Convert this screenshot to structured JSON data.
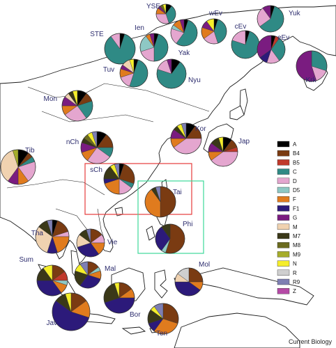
{
  "credit": "Current Biology",
  "legend": [
    {
      "label": "A",
      "color": "#000000"
    },
    {
      "label": "B4",
      "color": "#7a3b12"
    },
    {
      "label": "B5",
      "color": "#c0392b"
    },
    {
      "label": "C",
      "color": "#2f8a85"
    },
    {
      "label": "D",
      "color": "#e4a6cf"
    },
    {
      "label": "D5",
      "color": "#8ec8c4"
    },
    {
      "label": "F",
      "color": "#e07b1e"
    },
    {
      "label": "F1",
      "color": "#2c1a7a"
    },
    {
      "label": "G",
      "color": "#7a1c80"
    },
    {
      "label": "M",
      "color": "#f0d2b0"
    },
    {
      "label": "M7",
      "color": "#3a3818"
    },
    {
      "label": "M8",
      "color": "#6b6b1e"
    },
    {
      "label": "M9",
      "color": "#a6ad2a"
    },
    {
      "label": "N",
      "color": "#f5ee2a"
    },
    {
      "label": "R",
      "color": "#cfcfcf"
    },
    {
      "label": "R9",
      "color": "#7e7fb3"
    },
    {
      "label": "Z",
      "color": "#b54aa6"
    }
  ],
  "populations": [
    {
      "name": "YSE",
      "mix": {
        "A": 10,
        "C": 35,
        "D": 30,
        "F": 10,
        "G": 5,
        "N": 5,
        "M8": 5
      }
    },
    {
      "name": "wEv",
      "mix": {
        "C": 40,
        "D": 20,
        "F": 15,
        "G": 10,
        "A": 5,
        "N": 10
      }
    },
    {
      "name": "Yuk",
      "mix": {
        "C": 60,
        "D": 25,
        "G": 10,
        "A": 5
      }
    },
    {
      "name": "STE",
      "mix": {
        "C": 85,
        "D": 10,
        "A": 5
      }
    },
    {
      "name": "Ien",
      "mix": {
        "C": 45,
        "D5": 20,
        "D": 20,
        "A": 5,
        "G": 5,
        "F": 5
      }
    },
    {
      "name": "cEv",
      "mix": {
        "C": 75,
        "D": 20,
        "A": 5
      }
    },
    {
      "name": "eEv",
      "mix": {
        "C": 30,
        "G": 35,
        "D": 15,
        "F1": 10,
        "B5": 5,
        "A": 5
      }
    },
    {
      "name": "Yak",
      "mix": {
        "C": 55,
        "D": 20,
        "F": 10,
        "A": 5,
        "D5": 5,
        "G": 5
      }
    },
    {
      "name": "Tuv",
      "mix": {
        "C": 50,
        "D": 15,
        "F": 10,
        "A": 5,
        "M": 10,
        "N": 5,
        "G": 5
      }
    },
    {
      "name": "Nyu",
      "mix": {
        "C": 70,
        "D": 15,
        "A": 10,
        "G": 5
      }
    },
    {
      "name": "Krk",
      "mix": {
        "C": 30,
        "G": 55,
        "D": 15
      }
    },
    {
      "name": "Mon",
      "mix": {
        "D": 25,
        "C": 20,
        "A": 10,
        "G": 10,
        "B4": 10,
        "F": 10,
        "M": 5,
        "M7": 5,
        "N": 5
      }
    },
    {
      "name": "Kor",
      "mix": {
        "D": 40,
        "B4": 15,
        "A": 10,
        "G": 10,
        "F": 10,
        "M7": 5,
        "N": 5,
        "R9": 5
      }
    },
    {
      "name": "Jap",
      "mix": {
        "D": 40,
        "B4": 10,
        "A": 10,
        "G": 10,
        "M7": 10,
        "F": 10,
        "N": 5,
        "B5": 5
      }
    },
    {
      "name": "nCh",
      "mix": {
        "D": 25,
        "B4": 15,
        "C": 10,
        "A": 10,
        "G": 10,
        "F": 10,
        "M8": 5,
        "N": 5,
        "R9": 5,
        "M7": 5
      }
    },
    {
      "name": "Tib",
      "mix": {
        "M": 35,
        "D": 20,
        "A": 10,
        "G": 10,
        "F": 10,
        "B4": 5,
        "M9": 5,
        "C": 5
      }
    },
    {
      "name": "sCh",
      "mix": {
        "B4": 25,
        "F": 20,
        "D": 15,
        "M7": 15,
        "C": 5,
        "N": 5,
        "R9": 5,
        "A": 5,
        "F1": 5
      }
    },
    {
      "name": "Tai",
      "mix": {
        "B4": 50,
        "F": 40,
        "R9": 5,
        "M7": 5
      }
    },
    {
      "name": "Phi",
      "mix": {
        "B4": 55,
        "F1": 30,
        "M7": 10,
        "D5": 5
      }
    },
    {
      "name": "Tha",
      "mix": {
        "M": 30,
        "F": 20,
        "B4": 15,
        "F1": 10,
        "M7": 10,
        "D": 5,
        "R9": 5,
        "A": 5
      }
    },
    {
      "name": "Vie",
      "mix": {
        "F1": 30,
        "M": 15,
        "B4": 15,
        "F": 15,
        "M7": 10,
        "D": 10,
        "R9": 5
      }
    },
    {
      "name": "Mal",
      "mix": {
        "F1": 30,
        "M7": 20,
        "B4": 15,
        "F": 10,
        "R9": 10,
        "D5": 5,
        "N": 10
      }
    },
    {
      "name": "Mol",
      "mix": {
        "F1": 40,
        "B4": 25,
        "R": 15,
        "M": 10,
        "F": 10
      }
    },
    {
      "name": "Sum",
      "mix": {
        "F1": 35,
        "B4": 15,
        "M7": 15,
        "F": 10,
        "N": 10,
        "D5": 5,
        "B5": 10
      }
    },
    {
      "name": "Bor",
      "mix": {
        "F1": 45,
        "M7": 25,
        "B4": 15,
        "F": 10,
        "N": 5
      }
    },
    {
      "name": "Jav",
      "mix": {
        "F1": 55,
        "B4": 15,
        "F": 15,
        "M7": 10,
        "N": 5
      }
    },
    {
      "name": "Ten",
      "mix": {
        "F": 30,
        "B4": 30,
        "M7": 15,
        "F1": 10,
        "R9": 10,
        "N": 5
      }
    }
  ]
}
